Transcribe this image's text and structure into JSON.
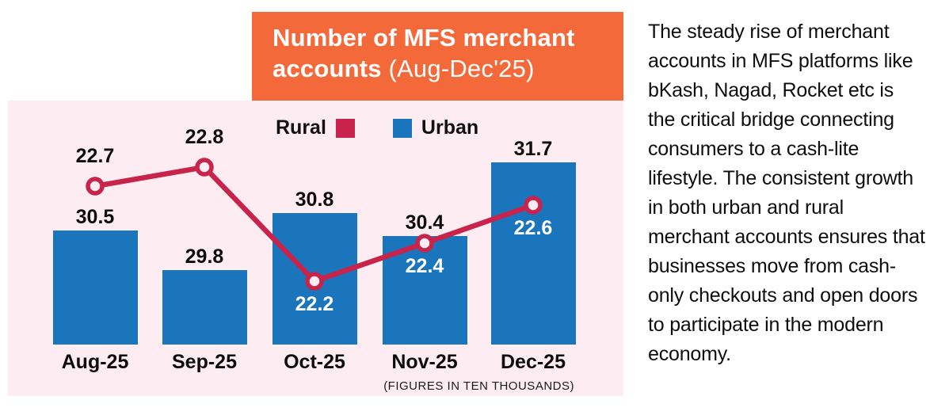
{
  "title": {
    "bold": "Number of MFS merchant accounts",
    "period": "(Aug-Dec'25)"
  },
  "legend": [
    {
      "label": "Rural",
      "color": "#c8234a"
    },
    {
      "label": "Urban",
      "color": "#1b75bc"
    }
  ],
  "note": "(FIGURES IN TEN THOUSANDS)",
  "paragraph": "The steady rise of merchant accounts in MFS platforms like bKash, Nagad, Rocket etc is the critical bridge connecting consumers to a cash-lite lifestyle. The consistent growth in both urban and rural merchant accounts ensures that businesses move from cash-only checkouts and open doors to participate in the modern economy.",
  "colors": {
    "accent_orange": "#f3693a",
    "panel_pink": "#fdecf2",
    "bar_blue": "#1b75bc",
    "line_red": "#c8234a"
  },
  "chart_data": {
    "type": "bar",
    "subtype": "bar+line combo",
    "title": "Number of MFS merchant accounts (Aug-Dec'25)",
    "unit_note": "(FIGURES IN TEN THOUSANDS)",
    "categories": [
      "Aug-25",
      "Sep-25",
      "Oct-25",
      "Nov-25",
      "Dec-25"
    ],
    "series": [
      {
        "name": "Urban",
        "type": "bar",
        "color": "#1b75bc",
        "values": [
          30.5,
          29.8,
          30.8,
          30.4,
          31.7
        ]
      },
      {
        "name": "Rural",
        "type": "line",
        "color": "#c8234a",
        "values": [
          22.7,
          22.8,
          22.2,
          22.4,
          22.6
        ]
      }
    ],
    "legend_position": "top",
    "grid": false,
    "value_labels": true
  }
}
